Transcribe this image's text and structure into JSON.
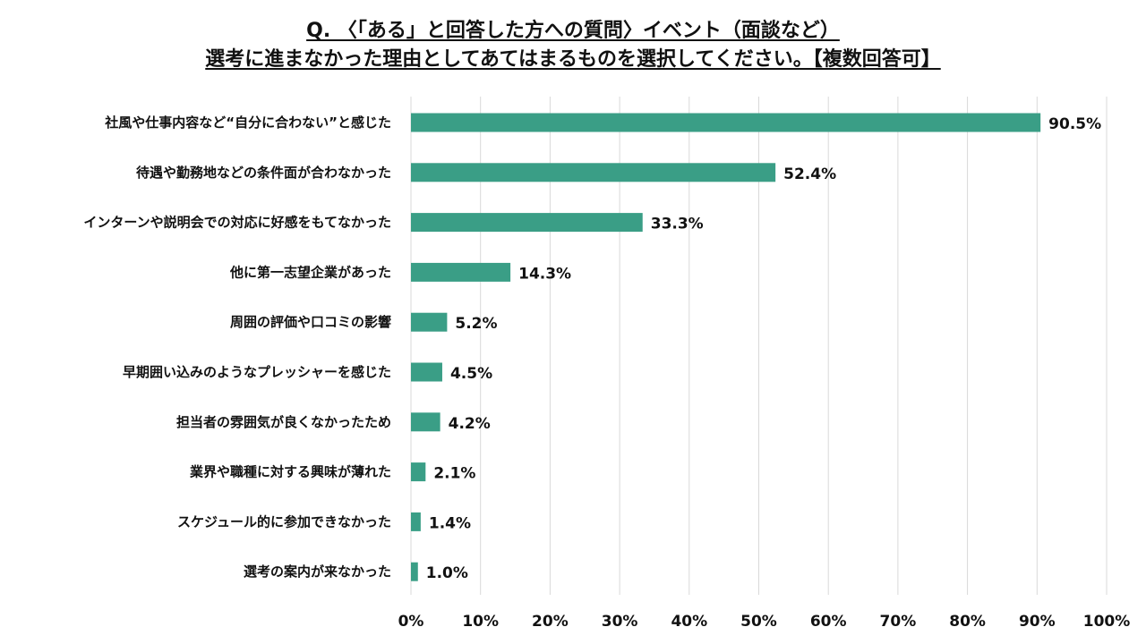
{
  "title_line1": "Q. 〈「ある」と回答した方への質問〉イベント（面談など）",
  "title_line2": "選考に進まなかった理由としてあてはまるものを選択してください。【複数回答可】",
  "chart_data": {
    "type": "bar",
    "orientation": "horizontal",
    "categories": [
      "社風や仕事内容など“自分に合わない”と感じた",
      "待遇や勤務地などの条件面が合わなかった",
      "インターンや説明会での対応に好感をもてなかった",
      "他に第一志望企業があった",
      "周囲の評価や口コミの影響",
      "早期囲い込みのようなプレッシャーを感じた",
      "担当者の雰囲気が良くなかったため",
      "業界や職種に対する興味が薄れた",
      "スケジュール的に参加できなかった",
      "選考の案内が来なかった"
    ],
    "values": [
      90.5,
      52.4,
      33.3,
      14.3,
      5.2,
      4.5,
      4.2,
      2.1,
      1.4,
      1.0
    ],
    "value_labels": [
      "90.5%",
      "52.4%",
      "33.3%",
      "14.3%",
      "5.2%",
      "4.5%",
      "4.2%",
      "2.1%",
      "1.4%",
      "1.0%"
    ],
    "xlim": [
      0,
      100
    ],
    "xticks": [
      "0%",
      "10%",
      "20%",
      "30%",
      "40%",
      "50%",
      "60%",
      "70%",
      "80%",
      "90%",
      "100%"
    ],
    "grid": true,
    "bar_color": "#3a9e86",
    "grid_color": "#d9d9d9"
  }
}
